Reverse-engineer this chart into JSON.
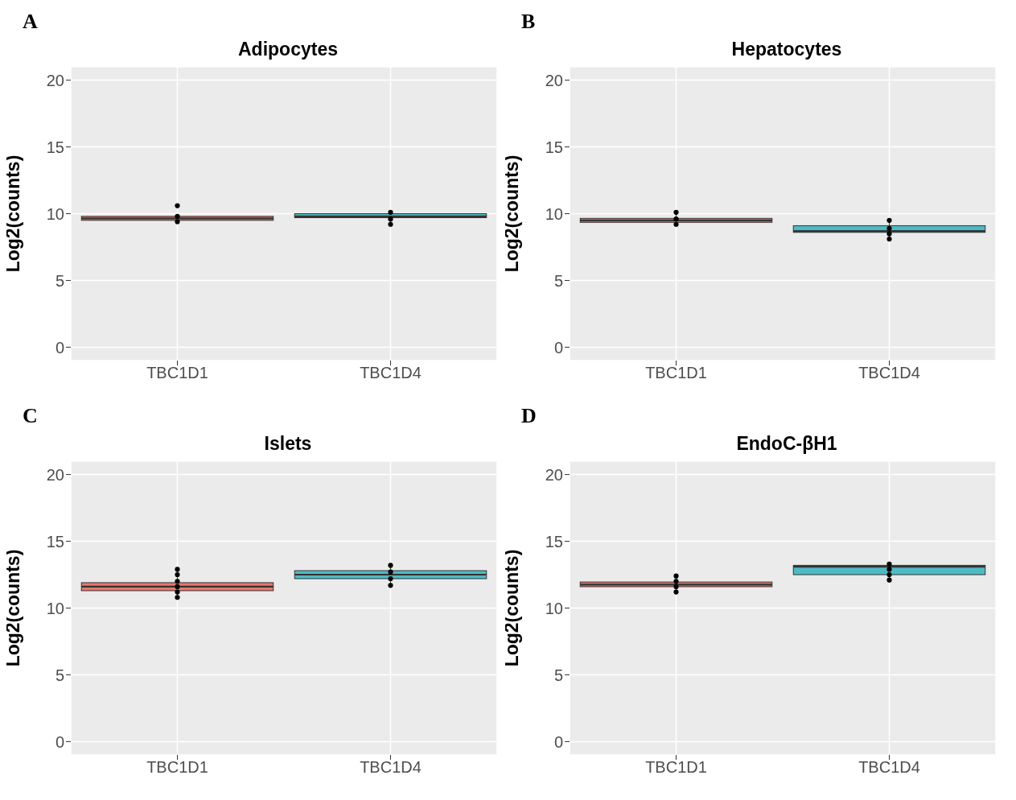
{
  "chart_data": [
    {
      "type": "box",
      "title": "Adipocytes",
      "ylabel": "Log2(counts)",
      "annotations": [
        "A"
      ],
      "categories": [
        "TBC1D1",
        "TBC1D4"
      ],
      "colors": [
        "#e8776c",
        "#4fbac4"
      ],
      "ylim": [
        -1,
        21
      ],
      "yticks": [
        0,
        5,
        10,
        15,
        20
      ],
      "grid": true,
      "boxes": [
        {
          "low": 9.4,
          "q1": 9.5,
          "median": 9.65,
          "q3": 9.8,
          "high": 9.9
        },
        {
          "low": 9.2,
          "q1": 9.7,
          "median": 9.8,
          "q3": 10.0,
          "high": 10.1
        }
      ],
      "series": [
        {
          "type": "scatter",
          "color": "#000000",
          "x": [
            "TBC1D1",
            "TBC1D1",
            "TBC1D1",
            "TBC1D4",
            "TBC1D4",
            "TBC1D4"
          ],
          "values": [
            9.4,
            9.8,
            10.6,
            9.2,
            9.6,
            10.1
          ]
        }
      ]
    },
    {
      "type": "box",
      "title": "Hepatocytes",
      "ylabel": "Log2(counts)",
      "annotations": [
        "B"
      ],
      "categories": [
        "TBC1D1",
        "TBC1D4"
      ],
      "colors": [
        "#e8776c",
        "#4fbac4"
      ],
      "ylim": [
        -1,
        21
      ],
      "yticks": [
        0,
        5,
        10,
        15,
        20
      ],
      "grid": true,
      "boxes": [
        {
          "low": 9.2,
          "q1": 9.35,
          "median": 9.5,
          "q3": 9.65,
          "high": 10.1
        },
        {
          "low": 8.1,
          "q1": 8.6,
          "median": 8.7,
          "q3": 9.1,
          "high": 9.5
        }
      ],
      "series": [
        {
          "type": "scatter",
          "color": "#000000",
          "x": [
            "TBC1D1",
            "TBC1D1",
            "TBC1D1",
            "TBC1D4",
            "TBC1D4",
            "TBC1D4",
            "TBC1D4"
          ],
          "values": [
            9.2,
            9.6,
            10.1,
            8.1,
            8.5,
            8.9,
            9.5
          ]
        }
      ]
    },
    {
      "type": "box",
      "title": "Islets",
      "ylabel": "Log2(counts)",
      "annotations": [
        "C"
      ],
      "categories": [
        "TBC1D1",
        "TBC1D4"
      ],
      "colors": [
        "#e8776c",
        "#4fbac4"
      ],
      "ylim": [
        -1,
        21
      ],
      "yticks": [
        0,
        5,
        10,
        15,
        20
      ],
      "grid": true,
      "boxes": [
        {
          "low": 10.8,
          "q1": 11.3,
          "median": 11.6,
          "q3": 11.9,
          "high": 12.9
        },
        {
          "low": 11.7,
          "q1": 12.2,
          "median": 12.5,
          "q3": 12.8,
          "high": 13.2
        }
      ],
      "series": [
        {
          "type": "scatter",
          "color": "#000000",
          "x": [
            "TBC1D1",
            "TBC1D1",
            "TBC1D1",
            "TBC1D1",
            "TBC1D1",
            "TBC1D1",
            "TBC1D4",
            "TBC1D4",
            "TBC1D4",
            "TBC1D4"
          ],
          "values": [
            10.8,
            11.2,
            11.6,
            12.0,
            12.5,
            12.9,
            11.7,
            12.2,
            12.7,
            13.2
          ]
        }
      ]
    },
    {
      "type": "box",
      "title": "EndoC-βH1",
      "ylabel": "Log2(counts)",
      "annotations": [
        "D"
      ],
      "categories": [
        "TBC1D1",
        "TBC1D4"
      ],
      "colors": [
        "#e8776c",
        "#4fbac4"
      ],
      "ylim": [
        -1,
        21
      ],
      "yticks": [
        0,
        5,
        10,
        15,
        20
      ],
      "grid": true,
      "boxes": [
        {
          "low": 11.2,
          "q1": 11.6,
          "median": 11.75,
          "q3": 11.95,
          "high": 12.4
        },
        {
          "low": 12.1,
          "q1": 12.5,
          "median": 13.1,
          "q3": 13.2,
          "high": 13.3
        }
      ],
      "series": [
        {
          "type": "scatter",
          "color": "#000000",
          "x": [
            "TBC1D1",
            "TBC1D1",
            "TBC1D1",
            "TBC1D1",
            "TBC1D4",
            "TBC1D4",
            "TBC1D4",
            "TBC1D4"
          ],
          "values": [
            11.2,
            11.6,
            12.0,
            12.4,
            12.1,
            12.5,
            12.9,
            13.3
          ]
        }
      ]
    }
  ]
}
